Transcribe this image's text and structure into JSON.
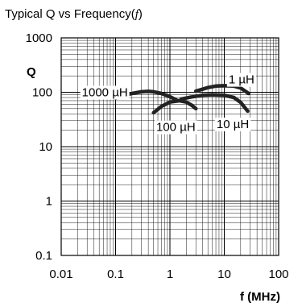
{
  "chart_data": {
    "type": "line",
    "title": {
      "text": "Typical Q vs Frequency",
      "var": "f"
    },
    "xlabel": "f (MHz)",
    "ylabel": "Q",
    "x_scale": "log",
    "y_scale": "log",
    "xlim": [
      0.01,
      100
    ],
    "ylim": [
      0.1,
      1000
    ],
    "x_ticks": [
      "0.01",
      "0.1",
      "1",
      "10",
      "100"
    ],
    "y_ticks": [
      "1000",
      "100",
      "10",
      "1",
      "0.1"
    ],
    "grid": true,
    "series": [
      {
        "name": "1000 µH",
        "x": [
          0.1,
          0.15,
          0.2,
          0.3,
          0.4,
          0.5,
          0.7,
          1.0,
          1.4
        ],
        "y": [
          78,
          88,
          95,
          102,
          104,
          102,
          95,
          83,
          70
        ]
      },
      {
        "name": "100 µH",
        "x": [
          0.5,
          0.7,
          1.0,
          1.5,
          2.0,
          2.5,
          3.0
        ],
        "y": [
          42,
          55,
          66,
          70,
          66,
          58,
          50
        ]
      },
      {
        "name": "10 µH",
        "x": [
          1.6,
          2.5,
          4,
          6,
          10,
          15,
          20,
          27
        ],
        "y": [
          75,
          82,
          88,
          90,
          88,
          80,
          65,
          45
        ]
      },
      {
        "name": "1 µH",
        "x": [
          3,
          5,
          7,
          10,
          15,
          20,
          28
        ],
        "y": [
          105,
          122,
          130,
          132,
          130,
          120,
          95
        ]
      }
    ]
  }
}
